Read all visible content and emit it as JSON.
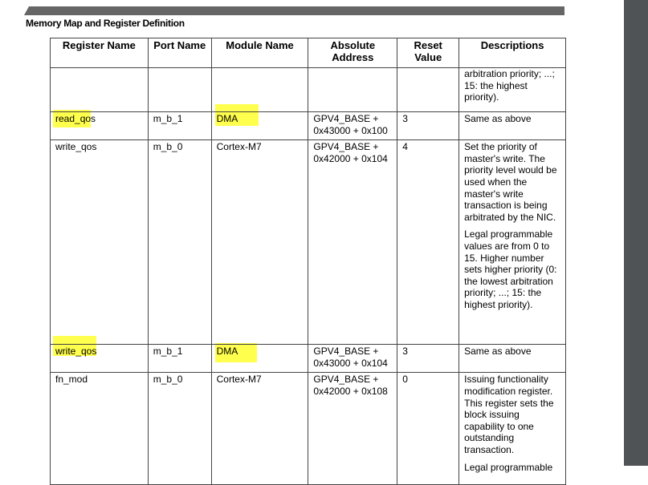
{
  "section_title": "Memory Map and Register Definition",
  "headers": [
    "Register Name",
    "Port Name",
    "Module Name",
    "Absolute Address",
    "Reset Value",
    "Descriptions"
  ],
  "rows": [
    {
      "reg": "",
      "port": "",
      "module": "",
      "addr": [
        "",
        ""
      ],
      "reset": "",
      "desc": [
        "arbitration priority; ...; 15: the highest priority)."
      ]
    },
    {
      "reg": "read_qos",
      "port": "m_b_1",
      "module": "DMA",
      "addr": [
        "GPV4_BASE +",
        "0x43000 + 0x100"
      ],
      "reset": "3",
      "desc": [
        "Same as above"
      ]
    },
    {
      "reg": "write_qos",
      "port": "m_b_0",
      "module": "Cortex-M7",
      "addr": [
        "GPV4_BASE +",
        "0x42000 + 0x104"
      ],
      "reset": "4",
      "desc": [
        "Set the priority of master's write. The priority level would be used when the master's write transaction is being arbitrated by the NIC.",
        "Legal programmable values are from 0 to 15. Higher number sets higher priority (0: the lowest arbitration priority; ...; 15: the highest priority)."
      ]
    },
    {
      "reg": "write_qos",
      "port": "m_b_1",
      "module": "DMA",
      "addr": [
        "GPV4_BASE +",
        "0x43000 + 0x104"
      ],
      "reset": "3",
      "desc": [
        "Same as above"
      ]
    },
    {
      "reg": "fn_mod",
      "port": "m_b_0",
      "module": "Cortex-M7",
      "addr": [
        "GPV4_BASE +",
        "0x42000 + 0x108"
      ],
      "reset": "0",
      "desc": [
        "Issuing functionality modification register. This register sets the block issuing capability to one outstanding transaction.",
        "Legal programmable"
      ]
    }
  ],
  "highlight_color": "#ffff3a"
}
